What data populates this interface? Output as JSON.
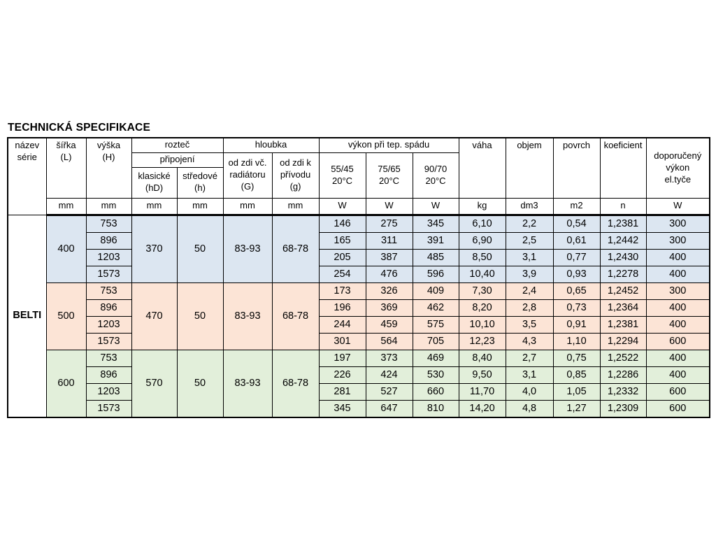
{
  "page": {
    "title": "TECHNICKÁ SPECIFIKACE"
  },
  "colors": {
    "row_group_400": "#dce6f1",
    "row_group_500": "#fce4d6",
    "row_group_600": "#e2efda",
    "table_border": "#000000",
    "page_background": "#ffffff"
  },
  "table": {
    "header": {
      "nazev_serie": "název\nsérie",
      "sirka": "šířka\n(L)",
      "vyska": "výška\n(H)",
      "roztec": "rozteč",
      "pripojeni": "připojení",
      "klasicke": "klasické\n(hD)",
      "stredove": "středové\n(h)",
      "hloubka": "hloubka",
      "od_zdi_vc": "od zdi vč.\nradiátoru\n(G)",
      "od_zdi_k": "od zdi k\npřívodu\n(g)",
      "vykon": "výkon při tep. spádu",
      "t5545": "55/45\n20°C",
      "t7565": "75/65\n20°C",
      "t9070": "90/70\n20°C",
      "vaha": "váha",
      "objem": "objem",
      "povrch": "povrch",
      "koeficient": "koeficient",
      "doporuceny": "doporučený\nvýkon\nel.tyče",
      "units_row": [
        "mm",
        "mm",
        "mm",
        "mm",
        "mm",
        "mm",
        "W",
        "W",
        "W",
        "kg",
        "dm3",
        "m2",
        "n",
        "W"
      ]
    },
    "series": "BELTI",
    "groups": [
      {
        "width": "400",
        "color": "#dce6f1",
        "klasicke": "370",
        "stredove": "50",
        "hloubka_vc": "83-93",
        "hloubka_k": "68-78",
        "rows": [
          {
            "vyska": "753",
            "values": [
              "146",
              "275",
              "345",
              "6,10",
              "2,2",
              "0,54",
              "1,2381",
              "300"
            ]
          },
          {
            "vyska": "896",
            "values": [
              "165",
              "311",
              "391",
              "6,90",
              "2,5",
              "0,61",
              "1,2442",
              "300"
            ]
          },
          {
            "vyska": "1203",
            "values": [
              "205",
              "387",
              "485",
              "8,50",
              "3,1",
              "0,77",
              "1,2430",
              "400"
            ]
          },
          {
            "vyska": "1573",
            "values": [
              "254",
              "476",
              "596",
              "10,40",
              "3,9",
              "0,93",
              "1,2278",
              "400"
            ]
          }
        ]
      },
      {
        "width": "500",
        "color": "#fce4d6",
        "klasicke": "470",
        "stredove": "50",
        "hloubka_vc": "83-93",
        "hloubka_k": "68-78",
        "rows": [
          {
            "vyska": "753",
            "values": [
              "173",
              "326",
              "409",
              "7,30",
              "2,4",
              "0,65",
              "1,2452",
              "300"
            ]
          },
          {
            "vyska": "896",
            "values": [
              "196",
              "369",
              "462",
              "8,20",
              "2,8",
              "0,73",
              "1,2364",
              "400"
            ]
          },
          {
            "vyska": "1203",
            "values": [
              "244",
              "459",
              "575",
              "10,10",
              "3,5",
              "0,91",
              "1,2381",
              "400"
            ]
          },
          {
            "vyska": "1573",
            "values": [
              "301",
              "564",
              "705",
              "12,23",
              "4,3",
              "1,10",
              "1,2294",
              "600"
            ]
          }
        ]
      },
      {
        "width": "600",
        "color": "#e2efda",
        "klasicke": "570",
        "stredove": "50",
        "hloubka_vc": "83-93",
        "hloubka_k": "68-78",
        "rows": [
          {
            "vyska": "753",
            "values": [
              "197",
              "373",
              "469",
              "8,40",
              "2,7",
              "0,75",
              "1,2522",
              "400"
            ]
          },
          {
            "vyska": "896",
            "values": [
              "226",
              "424",
              "530",
              "9,50",
              "3,1",
              "0,85",
              "1,2286",
              "400"
            ]
          },
          {
            "vyska": "1203",
            "values": [
              "281",
              "527",
              "660",
              "11,70",
              "4,0",
              "1,05",
              "1,2332",
              "600"
            ]
          },
          {
            "vyska": "1573",
            "values": [
              "345",
              "647",
              "810",
              "14,20",
              "4,8",
              "1,27",
              "1,2309",
              "600"
            ]
          }
        ]
      }
    ]
  }
}
